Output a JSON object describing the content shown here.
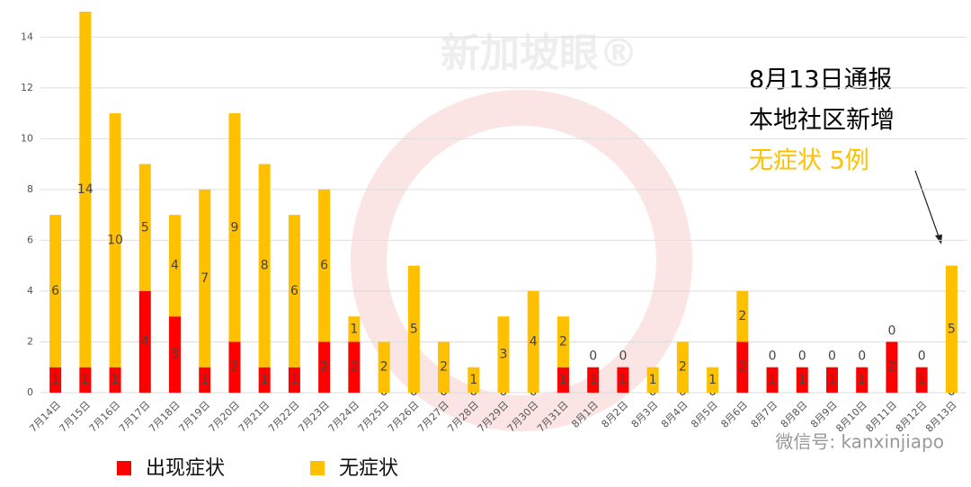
{
  "chart_data": {
    "type": "stacked-bar",
    "categories": [
      "7月14日",
      "7月15日",
      "7月16日",
      "7月17日",
      "7月18日",
      "7月19日",
      "7月20日",
      "7月21日",
      "7月22日",
      "7月23日",
      "7月24日",
      "7月25日",
      "7月26日",
      "7月27日",
      "7月28日",
      "7月29日",
      "7月30日",
      "7月31日",
      "8月1日",
      "8月2日",
      "8月3日",
      "8月4日",
      "8月5日",
      "8月6日",
      "8月7日",
      "8月8日",
      "8月9日",
      "8月10日",
      "8月11日",
      "8月12日",
      "8月13日"
    ],
    "series": [
      {
        "name": "出现症状",
        "color": "#ff0000",
        "values": [
          1,
          1,
          1,
          4,
          3,
          1,
          2,
          1,
          1,
          2,
          2,
          0,
          0,
          0,
          0,
          0,
          0,
          1,
          1,
          1,
          0,
          0,
          0,
          2,
          1,
          1,
          1,
          1,
          2,
          1,
          0
        ]
      },
      {
        "name": "无症状",
        "color": "#ffc000",
        "values": [
          6,
          14,
          10,
          5,
          4,
          7,
          9,
          8,
          6,
          6,
          1,
          2,
          5,
          2,
          1,
          3,
          4,
          2,
          0,
          0,
          1,
          2,
          1,
          2,
          0,
          0,
          0,
          0,
          0,
          0,
          5
        ]
      }
    ],
    "ylim": [
      0,
      15
    ],
    "yticks": [
      0,
      2,
      4,
      6,
      8,
      10,
      12,
      14
    ],
    "grid": true,
    "annotation": [
      "8月13日通报",
      "本地社区新增",
      "无症状 5例"
    ],
    "watermark": "新加坡眼®",
    "footer": "微信号: kanxinjiapo"
  }
}
